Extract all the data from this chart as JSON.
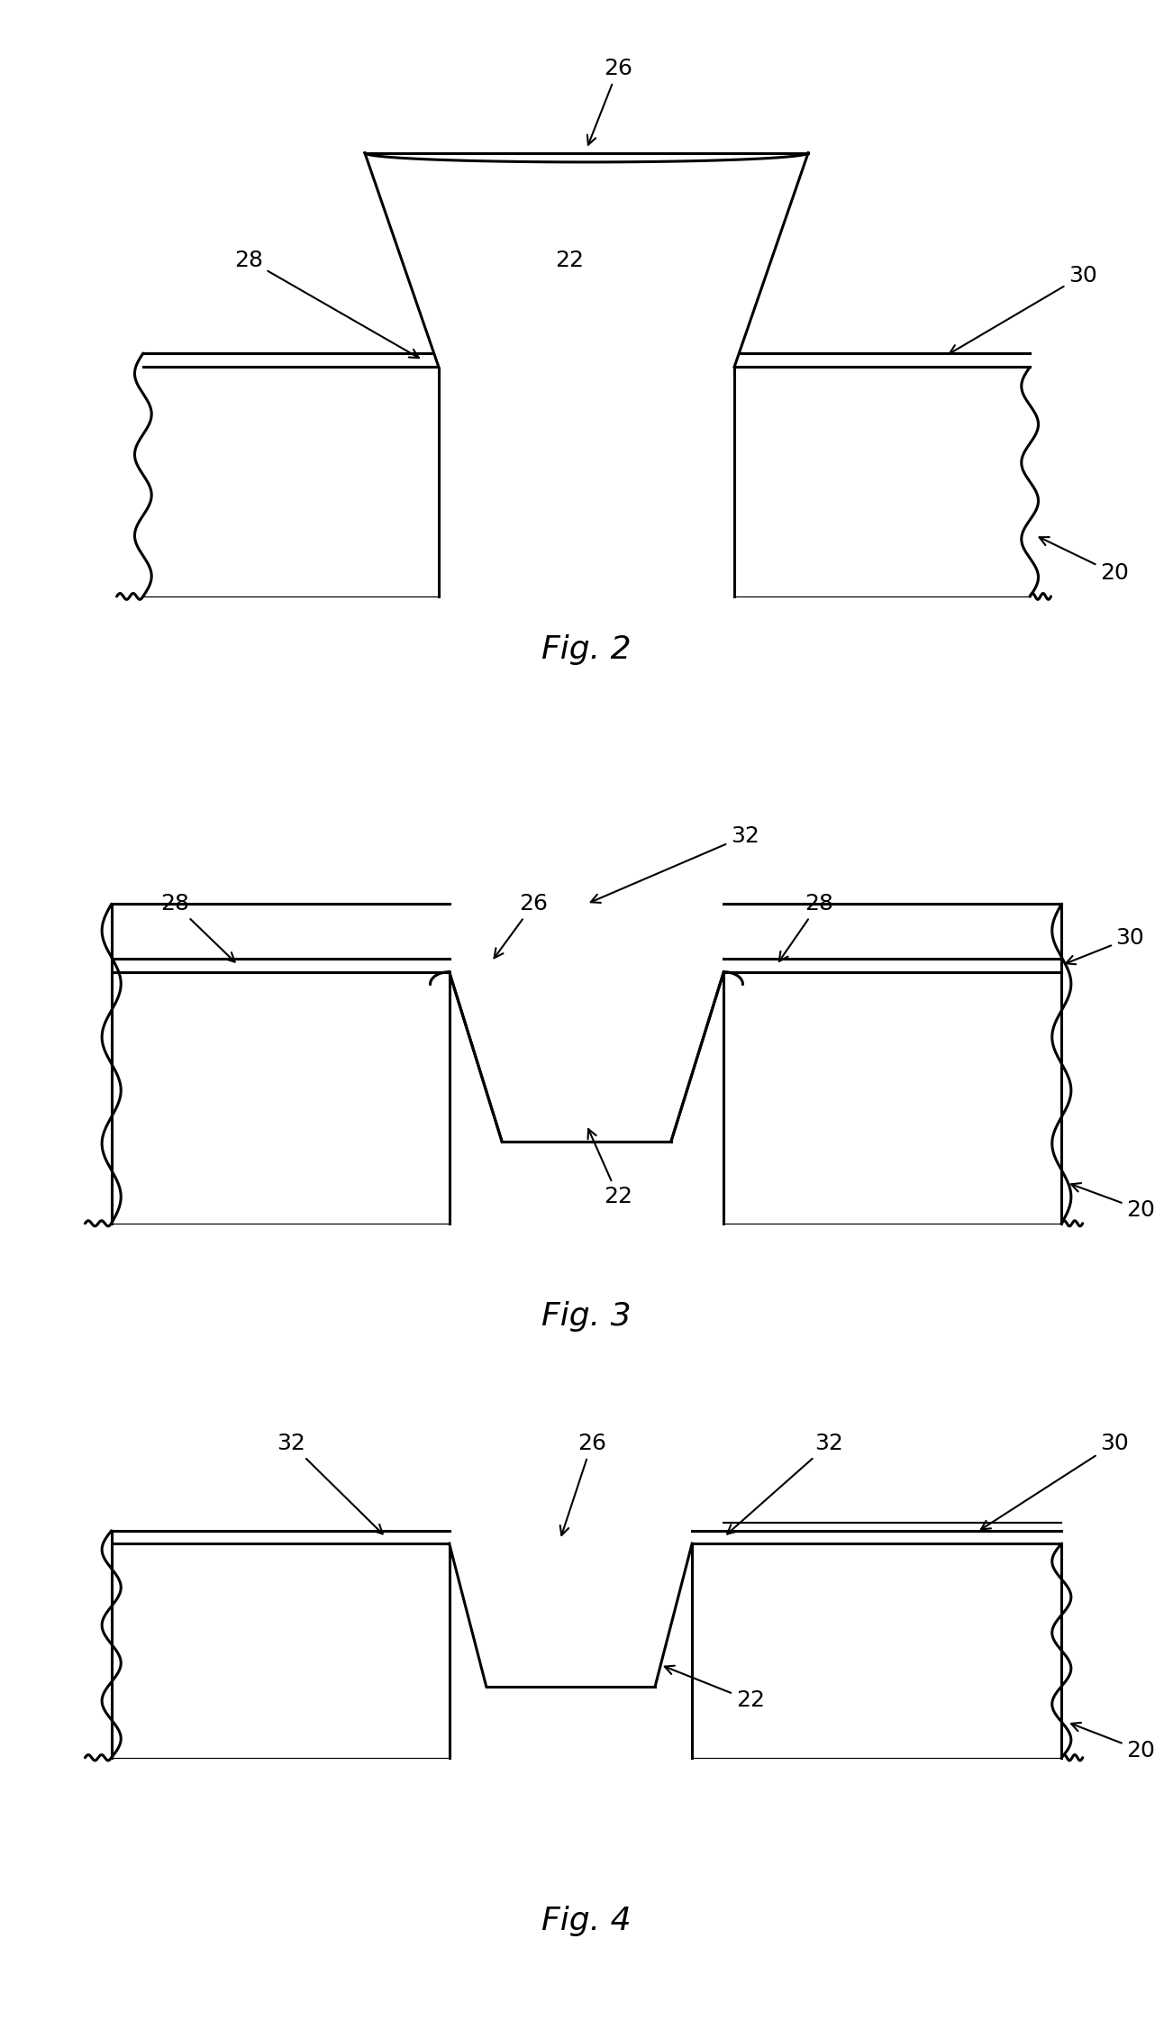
{
  "fig_labels": [
    "Fig. 2",
    "Fig. 3",
    "Fig. 4"
  ],
  "line_color": "#000000",
  "bg_color": "#ffffff",
  "line_width": 2.2,
  "label_fontsize": 18,
  "fig_label_fontsize": 26
}
